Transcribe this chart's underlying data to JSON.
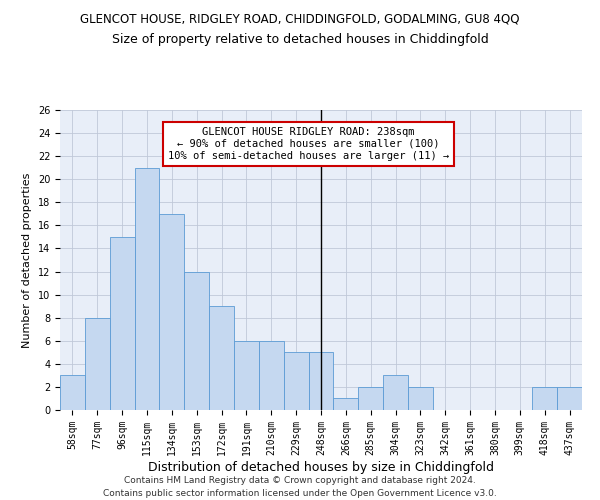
{
  "title1": "GLENCOT HOUSE, RIDGLEY ROAD, CHIDDINGFOLD, GODALMING, GU8 4QQ",
  "title2": "Size of property relative to detached houses in Chiddingfold",
  "xlabel": "Distribution of detached houses by size in Chiddingfold",
  "ylabel": "Number of detached properties",
  "categories": [
    "58sqm",
    "77sqm",
    "96sqm",
    "115sqm",
    "134sqm",
    "153sqm",
    "172sqm",
    "191sqm",
    "210sqm",
    "229sqm",
    "248sqm",
    "266sqm",
    "285sqm",
    "304sqm",
    "323sqm",
    "342sqm",
    "361sqm",
    "380sqm",
    "399sqm",
    "418sqm",
    "437sqm"
  ],
  "values": [
    3,
    8,
    15,
    21,
    17,
    12,
    9,
    6,
    6,
    5,
    5,
    1,
    2,
    3,
    2,
    0,
    0,
    0,
    0,
    2,
    2
  ],
  "bar_color": "#c5d8f0",
  "bar_edge_color": "#5b9bd5",
  "highlight_index": 10,
  "highlight_line_color": "#000000",
  "annotation_text": "GLENCOT HOUSE RIDGLEY ROAD: 238sqm\n← 90% of detached houses are smaller (100)\n10% of semi-detached houses are larger (11) →",
  "annotation_box_color": "#ffffff",
  "annotation_box_edge_color": "#cc0000",
  "ylim": [
    0,
    26
  ],
  "yticks": [
    0,
    2,
    4,
    6,
    8,
    10,
    12,
    14,
    16,
    18,
    20,
    22,
    24,
    26
  ],
  "grid_color": "#c0c8d8",
  "background_color": "#e8eef8",
  "footer_text": "Contains HM Land Registry data © Crown copyright and database right 2024.\nContains public sector information licensed under the Open Government Licence v3.0.",
  "title1_fontsize": 8.5,
  "title2_fontsize": 9,
  "xlabel_fontsize": 9,
  "ylabel_fontsize": 8,
  "tick_fontsize": 7,
  "annotation_fontsize": 7.5,
  "footer_fontsize": 6.5
}
